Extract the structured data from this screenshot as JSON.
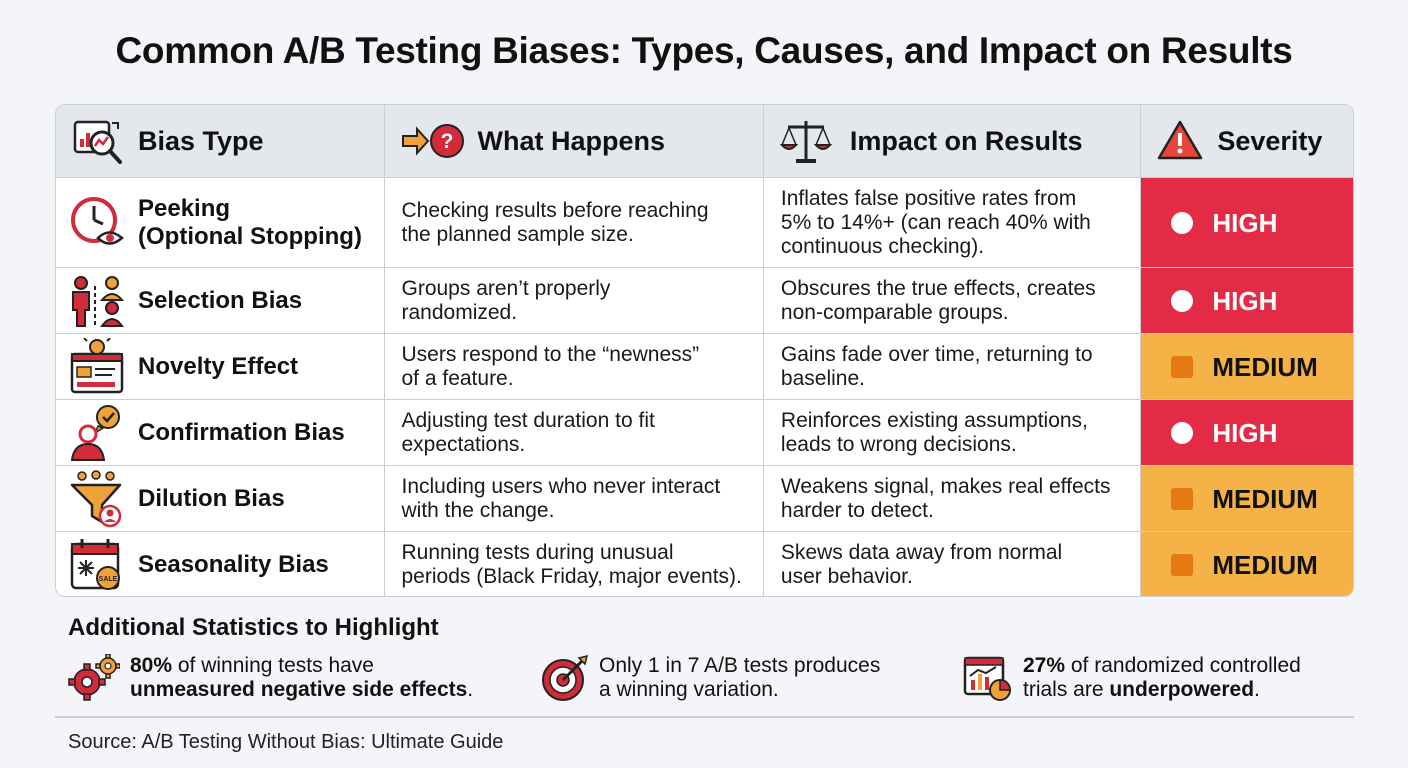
{
  "title": "Common A/B Testing Biases: Types, Causes, and Impact on Results",
  "colors": {
    "high": "#e32b45",
    "medium": "#f5b347",
    "icon_red": "#d12b3c",
    "icon_orange": "#f0a23a",
    "header_bg": "#e4e7ec"
  },
  "header": {
    "bias_type": "Bias Type",
    "what_happens": "What Happens",
    "impact": "Impact on Results",
    "severity": "Severity"
  },
  "rows": [
    {
      "icon": "clock-eye-icon",
      "name_line1": "Peeking",
      "name_line2": "(Optional Stopping)",
      "what_line1": "Checking results before reaching",
      "what_line2": "the planned sample size.",
      "impact_line1": "Inflates false positive rates from",
      "impact_line2": "5% to 14%+ (can reach 40% with",
      "impact_line3": "continuous checking).",
      "severity": "HIGH"
    },
    {
      "icon": "people-groups-icon",
      "name_line1": "Selection Bias",
      "what_line1": "Groups aren’t properly",
      "what_line2": "randomized.",
      "impact_line1": "Obscures the true effects, creates",
      "impact_line2": "non-comparable groups.",
      "severity": "HIGH"
    },
    {
      "icon": "lightbulb-window-icon",
      "name_line1": "Novelty Effect",
      "what_line1": "Users respond to the “newness”",
      "what_line2": "of a feature.",
      "impact_line1": "Gains fade over time, returning to",
      "impact_line2": "baseline.",
      "severity": "MEDIUM"
    },
    {
      "icon": "person-checkmark-icon",
      "name_line1": "Confirmation Bias",
      "what_line1": "Adjusting test duration to fit",
      "what_line2": "expectations.",
      "impact_line1": "Reinforces existing assumptions,",
      "impact_line2": "leads to wrong decisions.",
      "severity": "HIGH"
    },
    {
      "icon": "funnel-users-icon",
      "name_line1": "Dilution Bias",
      "what_line1": "Including users who never interact",
      "what_line2": "with the change.",
      "impact_line1": "Weakens signal, makes real effects",
      "impact_line2": "harder to detect.",
      "severity": "MEDIUM"
    },
    {
      "icon": "calendar-sale-icon",
      "name_line1": "Seasonality Bias",
      "what_line1": "Running tests during unusual",
      "what_line2": "periods (Black Friday, major events).",
      "impact_line1": "Skews data away from normal",
      "impact_line2": "user behavior.",
      "severity": "MEDIUM"
    }
  ],
  "stats": {
    "title": "Additional Statistics to Highlight",
    "items": [
      {
        "icon": "gears-icon",
        "bold1": "80%",
        "text1": " of winning tests have",
        "bold2": "unmeasured negative side effects",
        "text2": "."
      },
      {
        "icon": "target-icon",
        "text1": "Only 1 in 7 A/B tests produces",
        "text2": "a winning variation."
      },
      {
        "icon": "chart-dashboard-icon",
        "bold1": "27%",
        "text1": " of randomized controlled",
        "text2a": "trials are ",
        "bold2": "underpowered",
        "text2": "."
      }
    ]
  },
  "source": "Source: A/B Testing Without Bias: Ultimate Guide"
}
